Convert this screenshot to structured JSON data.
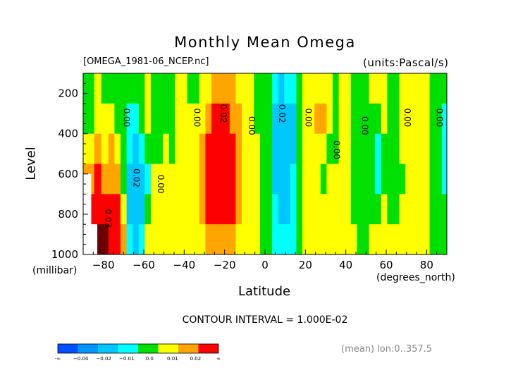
{
  "header": {
    "title": "Monthly Mean Omega",
    "source_file": "[OMEGA_1981-06_NCEP.nc]",
    "units": "(units:Pascal/s)"
  },
  "footer": {
    "contour_interval": "CONTOUR INTERVAL = 1.000E-02",
    "averaging": "(mean) lon:0..357.5"
  },
  "colors": {
    "neg_04": "#0050ff",
    "neg_03": "#0096ff",
    "neg_02": "#00c8ff",
    "neg_01": "#00ffff",
    "zero": "#00e000",
    "pos_01": "#ffff00",
    "pos_02": "#ffa500",
    "pos_03": "#ff0000",
    "pos_04": "#6a0000",
    "missing": "#ffffff"
  },
  "chart_data": {
    "type": "heatmap",
    "title": "Monthly Mean Omega",
    "xlabel": "Latitude",
    "xunits": "(degrees_north)",
    "ylabel": "Level",
    "yunits": "(millibar)",
    "xlim": [
      -90,
      90
    ],
    "ylim": [
      1000,
      100
    ],
    "xticks": [
      -80,
      -60,
      -40,
      -20,
      0,
      20,
      40,
      60,
      80
    ],
    "xtick_labels": [
      "−80",
      "−60",
      "−40",
      "−20",
      "0",
      "20",
      "40",
      "60",
      "80"
    ],
    "yticks": [
      200,
      400,
      600,
      800,
      1000
    ],
    "ytick_labels": [
      "200",
      "400",
      "600",
      "800",
      "1000"
    ],
    "contour_interval": 0.01,
    "columns": [
      {
        "lat": -86,
        "v": [
          0.0,
          0.0,
          0.005,
          0.015,
          0.025,
          0.03
        ]
      },
      {
        "lat": -83,
        "v": [
          0.005,
          0.005,
          0.01,
          0.02,
          0.035,
          0.05
        ]
      },
      {
        "lat": -79,
        "v": [
          0.0,
          0.005,
          0.005,
          0.015,
          0.03,
          0.045
        ]
      },
      {
        "lat": -76,
        "v": [
          0.0,
          0.005,
          0.01,
          0.015,
          0.02,
          0.025
        ]
      },
      {
        "lat": -73,
        "v": [
          0.0,
          0.0,
          0.005,
          0.01,
          0.02,
          0.025
        ]
      },
      {
        "lat": -70,
        "v": [
          0.0,
          0.0,
          0.0,
          0.0,
          0.005,
          0.01
        ]
      },
      {
        "lat": -67,
        "v": [
          0.0,
          -0.005,
          -0.005,
          -0.01,
          -0.01,
          -0.005
        ]
      },
      {
        "lat": -64,
        "v": [
          0.0,
          -0.005,
          -0.01,
          -0.015,
          -0.015,
          -0.01
        ]
      },
      {
        "lat": -61,
        "v": [
          0.0,
          0.0,
          -0.005,
          -0.01,
          -0.01,
          -0.005
        ]
      },
      {
        "lat": -58,
        "v": [
          0.005,
          0.005,
          0.0,
          -0.005,
          0.0,
          0.005
        ]
      },
      {
        "lat": -55,
        "v": [
          0.0,
          0.0,
          0.0,
          0.005,
          0.005,
          0.005
        ]
      },
      {
        "lat": -52,
        "v": [
          0.0,
          0.0,
          0.0,
          0.005,
          0.005,
          0.005
        ]
      },
      {
        "lat": -49,
        "v": [
          0.0,
          0.0,
          0.005,
          0.005,
          0.005,
          0.005
        ]
      },
      {
        "lat": -46,
        "v": [
          0.0,
          0.0,
          0.0,
          0.005,
          0.005,
          0.005
        ]
      },
      {
        "lat": -43,
        "v": [
          0.005,
          0.005,
          0.005,
          0.005,
          0.005,
          0.005
        ]
      },
      {
        "lat": -40,
        "v": [
          0.005,
          0.005,
          0.005,
          0.005,
          0.005,
          0.005
        ]
      },
      {
        "lat": -37,
        "v": [
          0.0,
          0.005,
          0.005,
          0.005,
          0.005,
          0.005
        ]
      },
      {
        "lat": -34,
        "v": [
          0.0,
          0.005,
          0.005,
          0.005,
          0.005,
          0.005
        ]
      },
      {
        "lat": -31,
        "v": [
          0.005,
          0.005,
          0.01,
          0.015,
          0.015,
          0.005
        ]
      },
      {
        "lat": -28,
        "v": [
          0.005,
          0.015,
          0.02,
          0.025,
          0.025,
          0.015
        ]
      },
      {
        "lat": -25,
        "v": [
          0.015,
          0.02,
          0.025,
          0.025,
          0.025,
          0.015
        ]
      },
      {
        "lat": -22,
        "v": [
          0.015,
          0.02,
          0.025,
          0.025,
          0.025,
          0.015
        ]
      },
      {
        "lat": -19,
        "v": [
          0.015,
          0.02,
          0.025,
          0.025,
          0.025,
          0.015
        ]
      },
      {
        "lat": -16,
        "v": [
          0.01,
          0.015,
          0.025,
          0.025,
          0.025,
          0.01
        ]
      },
      {
        "lat": -13,
        "v": [
          0.005,
          0.01,
          0.015,
          0.015,
          0.01,
          0.005
        ]
      },
      {
        "lat": -10,
        "v": [
          0.005,
          0.005,
          0.005,
          0.005,
          0.005,
          0.005
        ]
      },
      {
        "lat": -7,
        "v": [
          0.005,
          0.005,
          0.005,
          0.005,
          0.005,
          0.005
        ]
      },
      {
        "lat": -4,
        "v": [
          0.0,
          0.0,
          0.005,
          0.005,
          0.005,
          0.005
        ]
      },
      {
        "lat": -1,
        "v": [
          0.0,
          0.0,
          0.0,
          0.0,
          0.0,
          0.0
        ]
      },
      {
        "lat": 2,
        "v": [
          0.0,
          0.0,
          0.0,
          0.0,
          0.0,
          0.0
        ]
      },
      {
        "lat": 5,
        "v": [
          -0.005,
          -0.01,
          -0.015,
          -0.01,
          -0.005,
          -0.005
        ]
      },
      {
        "lat": 8,
        "v": [
          -0.01,
          -0.015,
          -0.015,
          -0.015,
          -0.01,
          -0.005
        ]
      },
      {
        "lat": 11,
        "v": [
          -0.005,
          -0.015,
          -0.015,
          -0.015,
          -0.01,
          -0.005
        ]
      },
      {
        "lat": 14,
        "v": [
          -0.005,
          -0.01,
          -0.01,
          -0.005,
          -0.005,
          -0.005
        ]
      },
      {
        "lat": 17,
        "v": [
          0.0,
          0.0,
          0.0,
          0.0,
          0.0,
          0.0
        ]
      },
      {
        "lat": 20,
        "v": [
          0.005,
          0.005,
          0.005,
          0.005,
          0.005,
          0.005
        ]
      },
      {
        "lat": 23,
        "v": [
          0.005,
          0.005,
          0.005,
          0.005,
          0.005,
          0.005
        ]
      },
      {
        "lat": 26,
        "v": [
          0.005,
          0.015,
          0.005,
          0.005,
          0.005,
          0.005
        ]
      },
      {
        "lat": 29,
        "v": [
          0.005,
          0.015,
          0.005,
          0.0,
          0.005,
          0.005
        ]
      },
      {
        "lat": 32,
        "v": [
          0.005,
          0.005,
          0.0,
          0.005,
          0.005,
          0.005
        ]
      },
      {
        "lat": 35,
        "v": [
          0.0,
          0.0,
          0.0,
          0.005,
          0.005,
          0.005
        ]
      },
      {
        "lat": 38,
        "v": [
          0.005,
          0.005,
          0.005,
          0.005,
          0.005,
          0.005
        ]
      },
      {
        "lat": 41,
        "v": [
          0.005,
          0.005,
          0.005,
          0.005,
          0.005,
          0.005
        ]
      },
      {
        "lat": 44,
        "v": [
          0.0,
          0.0,
          0.0,
          0.0,
          0.0,
          0.005
        ]
      },
      {
        "lat": 47,
        "v": [
          0.0,
          0.0,
          0.0,
          0.0,
          0.0,
          0.0
        ]
      },
      {
        "lat": 50,
        "v": [
          0.0,
          0.0,
          0.0,
          0.0,
          0.0,
          0.0
        ]
      },
      {
        "lat": 53,
        "v": [
          0.005,
          0.0,
          0.0,
          0.0,
          0.0,
          0.005
        ]
      },
      {
        "lat": 56,
        "v": [
          0.005,
          0.0,
          -0.005,
          -0.005,
          0.0,
          0.005
        ]
      },
      {
        "lat": 59,
        "v": [
          0.005,
          0.005,
          0.0,
          0.0,
          0.005,
          0.005
        ]
      },
      {
        "lat": 62,
        "v": [
          0.0,
          0.0,
          0.0,
          0.0,
          0.0,
          0.005
        ]
      },
      {
        "lat": 65,
        "v": [
          0.0,
          0.0,
          0.0,
          0.0,
          0.0,
          0.005
        ]
      },
      {
        "lat": 68,
        "v": [
          0.005,
          0.005,
          0.005,
          0.0,
          0.005,
          0.005
        ]
      },
      {
        "lat": 71,
        "v": [
          0.005,
          0.005,
          0.005,
          0.005,
          0.005,
          0.005
        ]
      },
      {
        "lat": 74,
        "v": [
          0.005,
          0.005,
          0.005,
          0.005,
          0.005,
          0.005
        ]
      },
      {
        "lat": 77,
        "v": [
          0.005,
          0.005,
          0.005,
          0.005,
          0.005,
          0.005
        ]
      },
      {
        "lat": 80,
        "v": [
          0.005,
          0.005,
          0.005,
          0.005,
          0.005,
          0.005
        ]
      },
      {
        "lat": 83,
        "v": [
          0.0,
          0.0,
          0.0,
          0.0,
          0.0,
          0.0
        ]
      },
      {
        "lat": 86,
        "v": [
          0.0,
          0.0,
          0.0,
          0.0,
          0.0,
          0.0
        ]
      },
      {
        "lat": 89,
        "v": [
          0.0,
          -0.005,
          -0.005,
          -0.005,
          0.0,
          0.0
        ]
      }
    ],
    "levels": [
      {
        "range": [
          100,
          250
        ]
      },
      {
        "range": [
          250,
          400
        ]
      },
      {
        "range": [
          400,
          550
        ]
      },
      {
        "range": [
          550,
          700
        ]
      },
      {
        "range": [
          700,
          850
        ]
      },
      {
        "range": [
          850,
          1000
        ]
      }
    ],
    "missing_regions": [
      {
        "lat": [
          -90,
          -86
        ],
        "p": [
          600,
          1000
        ]
      },
      {
        "lat": [
          -86,
          -83
        ],
        "p": [
          850,
          1000
        ]
      }
    ],
    "contour_labels": [
      {
        "text": "0.00",
        "lat": -70,
        "p": 320
      },
      {
        "text": "0.02",
        "lat": -65,
        "p": 620
      },
      {
        "text": "0.00",
        "lat": -53,
        "p": 650
      },
      {
        "text": "0.00",
        "lat": -35,
        "p": 320
      },
      {
        "text": "0.02",
        "lat": -22,
        "p": 300
      },
      {
        "text": "0.00",
        "lat": -8,
        "p": 360
      },
      {
        "text": "0.02",
        "lat": 7,
        "p": 300
      },
      {
        "text": "0.00",
        "lat": 20,
        "p": 320
      },
      {
        "text": "0.00",
        "lat": 34,
        "p": 480
      },
      {
        "text": "0.00",
        "lat": 48,
        "p": 360
      },
      {
        "text": "0.00",
        "lat": 69,
        "p": 320
      },
      {
        "text": "0.00",
        "lat": 85,
        "p": 320
      },
      {
        "text": "0.03",
        "lat": -79,
        "p": 820
      }
    ],
    "colorbar": {
      "labels": [
        "-∞",
        "−0.04",
        "−0.02",
        "−0.01",
        "0.0",
        "0.01",
        "0.02",
        "∞"
      ],
      "bins": [
        {
          "color_key": "neg_04"
        },
        {
          "color_key": "neg_03"
        },
        {
          "color_key": "neg_02"
        },
        {
          "color_key": "neg_01"
        },
        {
          "color_key": "zero"
        },
        {
          "color_key": "pos_01"
        },
        {
          "color_key": "pos_02"
        },
        {
          "color_key": "pos_03"
        }
      ]
    }
  }
}
